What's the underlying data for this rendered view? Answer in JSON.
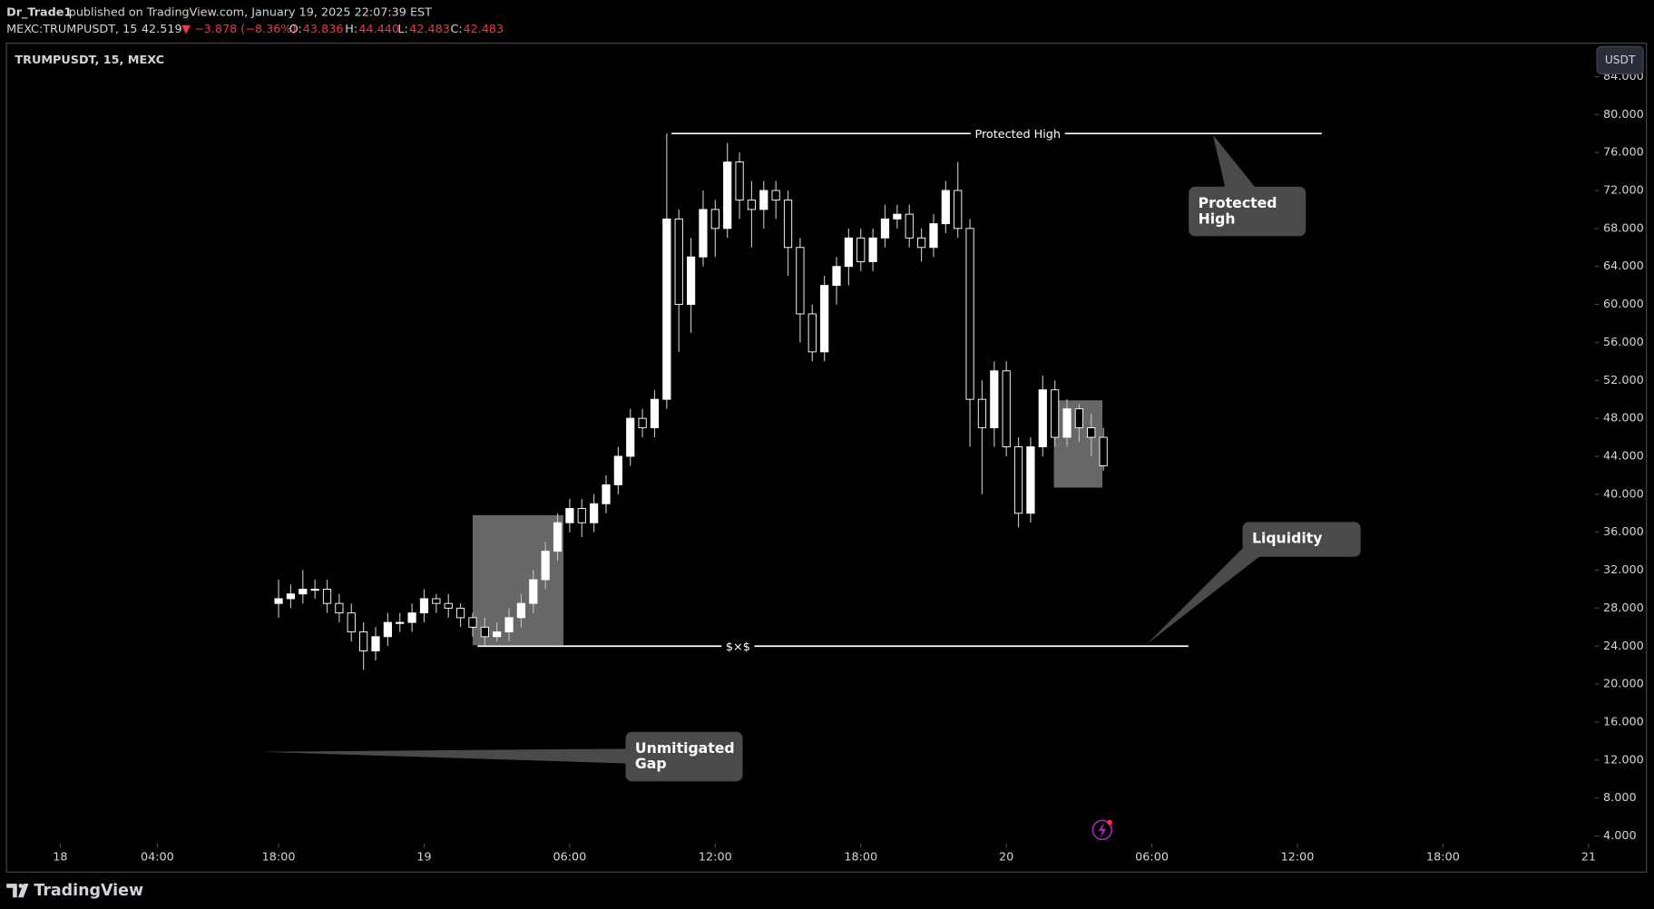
{
  "header": {
    "author": "Dr_Trade1",
    "published": "published on TradingView.com, January 19, 2025 22:07:39 EST",
    "symbol": "MEXC:TRUMPUSDT, 15",
    "last": "42.519",
    "change": "▼ −3.878 (−8.36%)",
    "o_label": "O:",
    "o": "43.836",
    "h_label": "H:",
    "h": "44.440",
    "l_label": "L:",
    "l": "42.483",
    "c_label": "C:",
    "c": "42.483"
  },
  "footer": {
    "brand": "TradingView"
  },
  "chart_data": {
    "type": "candlestick",
    "title": "TRUMPUSDT, 15, MEXC",
    "currency": "USDT",
    "up_color": "#ffffff",
    "down_color": "#000000",
    "wick_color": "#bdbdbd",
    "grid": false,
    "x": [
      -6,
      -5.5,
      -5,
      -4.5,
      -4,
      -3.5,
      -3,
      -2.5,
      -2,
      -1.5,
      -1,
      -0.5,
      0,
      0.5,
      1,
      1.5,
      2,
      2.5,
      3,
      3.5,
      4,
      4.5,
      5,
      5.5,
      6,
      6.5,
      7,
      7.5,
      8,
      8.5,
      9,
      9.5,
      10,
      10.5,
      11,
      11.5,
      12,
      12.5,
      13,
      13.5,
      14,
      14.5,
      15,
      15.5,
      16,
      16.5,
      17,
      17.5,
      18,
      18.5,
      19,
      19.5,
      20,
      20.5,
      21,
      21.5,
      22,
      22.5,
      23,
      23.5,
      24,
      24.5,
      25,
      25.5,
      26,
      26.5,
      27,
      27.5,
      28
    ],
    "open": [
      28.5,
      29,
      29.5,
      30,
      30,
      28.5,
      27.5,
      25.5,
      23.5,
      25,
      26.5,
      26.5,
      27.5,
      29,
      28.5,
      28,
      27,
      26,
      25,
      25.5,
      27,
      28.5,
      31,
      34,
      37,
      38.5,
      37,
      39,
      41,
      44,
      48,
      47,
      50,
      69,
      60,
      65,
      70,
      68,
      75,
      71,
      70,
      72,
      71,
      66,
      59,
      55,
      62,
      64,
      67,
      64.5,
      67,
      69,
      69.5,
      67,
      66,
      68.5,
      72,
      68,
      50,
      47,
      53,
      45,
      38,
      45,
      51,
      46,
      49,
      47,
      46
    ],
    "high": [
      31,
      30.5,
      32,
      31,
      31,
      29.5,
      28.5,
      26.5,
      26,
      27.5,
      27.5,
      28.5,
      30,
      29.5,
      29.5,
      28.5,
      27.5,
      27,
      26.5,
      28,
      29.5,
      32,
      35,
      38,
      39.5,
      39.5,
      40,
      42,
      45,
      49,
      49,
      51,
      78,
      70,
      67,
      72,
      71,
      77,
      76,
      73,
      73,
      73,
      72,
      67,
      60,
      63,
      65,
      68,
      68,
      68,
      70.5,
      70.5,
      70.5,
      68,
      69.5,
      73,
      75,
      69,
      52,
      54,
      54,
      46,
      46,
      52.5,
      52,
      50,
      49.5,
      48.5,
      47
    ],
    "low": [
      27,
      28,
      28.5,
      29,
      27.5,
      26.5,
      24.5,
      21.5,
      22.5,
      24,
      25.5,
      25.5,
      26.5,
      27.5,
      27,
      26,
      25,
      24,
      24.5,
      24.5,
      26,
      27.5,
      30,
      33,
      36,
      35.5,
      36,
      38,
      40,
      43,
      46,
      46,
      49,
      55,
      57,
      64,
      65,
      67,
      69,
      66,
      68,
      69,
      63,
      56,
      54,
      54,
      60,
      62,
      63.5,
      63.5,
      66,
      68,
      66,
      64.5,
      65,
      67.5,
      67,
      45,
      40,
      45,
      44,
      36.5,
      37,
      44,
      45,
      45,
      45.5,
      44,
      42.5
    ],
    "close": [
      29,
      29.5,
      30,
      30,
      28.5,
      27.5,
      25.5,
      23.5,
      25,
      26.5,
      26.5,
      27.5,
      29,
      28.5,
      28,
      27,
      26,
      25,
      25.5,
      27,
      28.5,
      31,
      34,
      37,
      38.5,
      37,
      39,
      41,
      44,
      48,
      47,
      50,
      69,
      60,
      65,
      70,
      68,
      75,
      71,
      70,
      72,
      71,
      66,
      59,
      55,
      62,
      64,
      67,
      64.5,
      67,
      69,
      69.5,
      67,
      66,
      68.5,
      72,
      68,
      50,
      47,
      53,
      45,
      38,
      45,
      51,
      46,
      49,
      47,
      46,
      43
    ],
    "xlim": [
      -17.13,
      48.17
    ],
    "xticks": [
      {
        "value": -15,
        "label": "18"
      },
      {
        "value": -11,
        "label": "04:00"
      },
      {
        "value": -6,
        "label": "18:00"
      },
      {
        "value": 0,
        "label": "19"
      },
      {
        "value": 6,
        "label": "06:00"
      },
      {
        "value": 12,
        "label": "12:00"
      },
      {
        "value": 18,
        "label": "18:00"
      },
      {
        "value": 24,
        "label": "20"
      },
      {
        "value": 30,
        "label": "06:00"
      },
      {
        "value": 36,
        "label": "12:00"
      },
      {
        "value": 42,
        "label": "18:00"
      },
      {
        "value": 48,
        "label": "21"
      }
    ],
    "ylim": [
      0.2,
      87.4
    ],
    "yticks": [
      {
        "value": 4,
        "label": "4.000"
      },
      {
        "value": 8,
        "label": "8.000"
      },
      {
        "value": 12,
        "label": "12.000"
      },
      {
        "value": 16,
        "label": "16.000"
      },
      {
        "value": 20,
        "label": "20.000"
      },
      {
        "value": 24,
        "label": "24.000"
      },
      {
        "value": 28,
        "label": "28.000"
      },
      {
        "value": 32,
        "label": "32.000"
      },
      {
        "value": 36,
        "label": "36.000"
      },
      {
        "value": 40,
        "label": "40.000"
      },
      {
        "value": 44,
        "label": "44.000"
      },
      {
        "value": 48,
        "label": "48.000"
      },
      {
        "value": 52,
        "label": "52.000"
      },
      {
        "value": 56,
        "label": "56.000"
      },
      {
        "value": 60,
        "label": "60.000"
      },
      {
        "value": 64,
        "label": "64.000"
      },
      {
        "value": 68,
        "label": "68.000"
      },
      {
        "value": 72,
        "label": "72.000"
      },
      {
        "value": 76,
        "label": "76.000"
      },
      {
        "value": 80,
        "label": "80.000"
      },
      {
        "value": 84,
        "label": "84.000"
      }
    ],
    "levels": [
      {
        "label": "Protected High",
        "value": 78,
        "x": [
          10.2,
          37
        ]
      },
      {
        "label": "$×$",
        "value": 24,
        "x": [
          2.2,
          31.5
        ]
      }
    ],
    "zones": [
      {
        "x": [
          2,
          5.74
        ],
        "y": [
          24.1,
          37.8
        ]
      },
      {
        "x": [
          25.96,
          27.96
        ],
        "y": [
          40.7,
          49.9
        ]
      }
    ],
    "callouts": [
      {
        "lines": [
          "Protected",
          "High"
        ]
      },
      {
        "lines": [
          "Liquidity"
        ]
      },
      {
        "lines": [
          "Unmitigated",
          "Gap"
        ]
      }
    ]
  }
}
